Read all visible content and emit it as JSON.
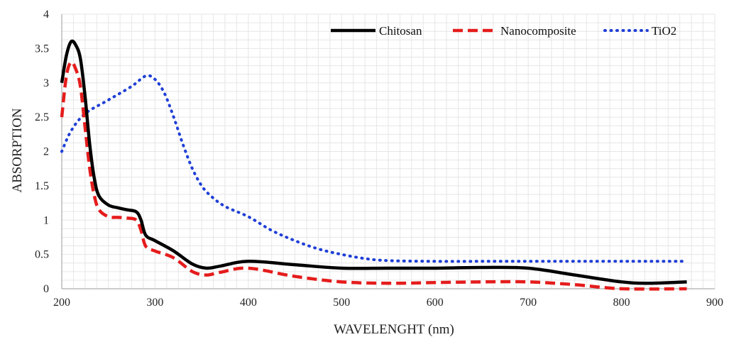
{
  "chart_data": {
    "type": "line",
    "xlabel": "WAVELENGHT  (nm)",
    "ylabel": "ABSORPTION",
    "xlim": [
      200,
      900
    ],
    "ylim": [
      0,
      4
    ],
    "x_ticks": [
      200,
      300,
      400,
      500,
      600,
      700,
      800,
      900
    ],
    "y_ticks": [
      0,
      0.5,
      1,
      1.5,
      2,
      2.5,
      3,
      3.5,
      4
    ],
    "x_tick_labels": [
      "200",
      "300",
      "400",
      "500",
      "600",
      "700",
      "800",
      "900"
    ],
    "y_tick_labels": [
      "0",
      "0.5",
      "1",
      "1.5",
      "2",
      "2.5",
      "3",
      "3.5",
      "4"
    ],
    "grid": "minor gridlines on both axes",
    "legend_position": "top-right",
    "series": [
      {
        "name": "Chitosan",
        "color": "#000000",
        "line_style": "solid",
        "points": [
          [
            200,
            3.0
          ],
          [
            205,
            3.4
          ],
          [
            210,
            3.6
          ],
          [
            215,
            3.55
          ],
          [
            220,
            3.35
          ],
          [
            225,
            2.8
          ],
          [
            230,
            2.1
          ],
          [
            235,
            1.6
          ],
          [
            240,
            1.35
          ],
          [
            250,
            1.22
          ],
          [
            260,
            1.18
          ],
          [
            270,
            1.15
          ],
          [
            280,
            1.12
          ],
          [
            285,
            1.0
          ],
          [
            290,
            0.78
          ],
          [
            300,
            0.7
          ],
          [
            320,
            0.55
          ],
          [
            340,
            0.36
          ],
          [
            355,
            0.3
          ],
          [
            370,
            0.33
          ],
          [
            400,
            0.4
          ],
          [
            450,
            0.35
          ],
          [
            500,
            0.3
          ],
          [
            550,
            0.3
          ],
          [
            600,
            0.3
          ],
          [
            650,
            0.31
          ],
          [
            700,
            0.3
          ],
          [
            750,
            0.2
          ],
          [
            800,
            0.1
          ],
          [
            830,
            0.08
          ],
          [
            870,
            0.1
          ]
        ]
      },
      {
        "name": "Nanocomposite",
        "color": "#e51c1c",
        "line_style": "dashed",
        "points": [
          [
            200,
            2.5
          ],
          [
            205,
            3.1
          ],
          [
            210,
            3.3
          ],
          [
            215,
            3.2
          ],
          [
            220,
            2.95
          ],
          [
            225,
            2.35
          ],
          [
            230,
            1.75
          ],
          [
            235,
            1.35
          ],
          [
            240,
            1.15
          ],
          [
            250,
            1.05
          ],
          [
            260,
            1.04
          ],
          [
            270,
            1.03
          ],
          [
            280,
            1.0
          ],
          [
            285,
            0.85
          ],
          [
            290,
            0.62
          ],
          [
            300,
            0.55
          ],
          [
            320,
            0.45
          ],
          [
            340,
            0.25
          ],
          [
            355,
            0.2
          ],
          [
            370,
            0.24
          ],
          [
            400,
            0.3
          ],
          [
            450,
            0.18
          ],
          [
            500,
            0.1
          ],
          [
            550,
            0.08
          ],
          [
            600,
            0.09
          ],
          [
            650,
            0.1
          ],
          [
            700,
            0.1
          ],
          [
            750,
            0.06
          ],
          [
            800,
            0.0
          ],
          [
            870,
            0.0
          ]
        ]
      },
      {
        "name": "TiO2",
        "color": "#1f3fd6",
        "line_style": "dotted",
        "points": [
          [
            200,
            2.0
          ],
          [
            210,
            2.3
          ],
          [
            225,
            2.55
          ],
          [
            250,
            2.75
          ],
          [
            275,
            2.95
          ],
          [
            290,
            3.1
          ],
          [
            300,
            3.05
          ],
          [
            310,
            2.85
          ],
          [
            320,
            2.5
          ],
          [
            330,
            2.1
          ],
          [
            340,
            1.75
          ],
          [
            350,
            1.5
          ],
          [
            360,
            1.35
          ],
          [
            375,
            1.2
          ],
          [
            400,
            1.05
          ],
          [
            425,
            0.85
          ],
          [
            450,
            0.7
          ],
          [
            475,
            0.58
          ],
          [
            500,
            0.5
          ],
          [
            525,
            0.44
          ],
          [
            550,
            0.41
          ],
          [
            600,
            0.4
          ],
          [
            650,
            0.4
          ],
          [
            700,
            0.4
          ],
          [
            750,
            0.4
          ],
          [
            800,
            0.4
          ],
          [
            870,
            0.4
          ]
        ]
      }
    ]
  }
}
